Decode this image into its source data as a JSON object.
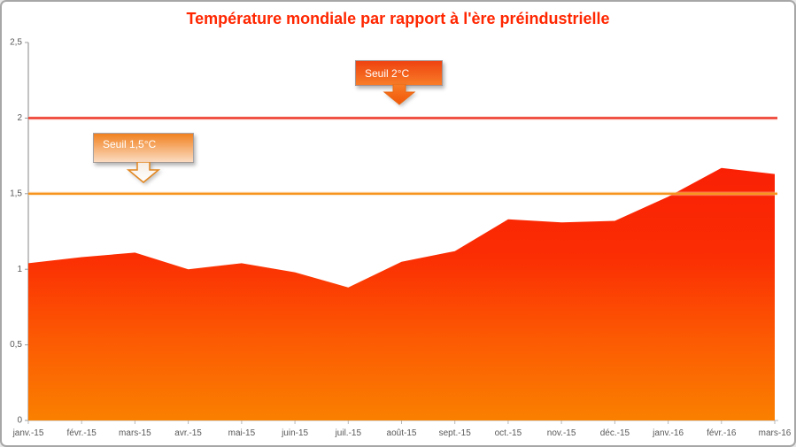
{
  "chart_data": {
    "type": "area",
    "title": "Température mondiale par rapport à l'ère préindustrielle",
    "title_color": "#ff2600",
    "categories": [
      "janv.-15",
      "févr.-15",
      "mars-15",
      "avr.-15",
      "mai-15",
      "juin-15",
      "juil.-15",
      "août-15",
      "sept.-15",
      "oct.-15",
      "nov.-15",
      "déc.-15",
      "janv.-16",
      "févr.-16",
      "mars-16"
    ],
    "values": [
      1.04,
      1.08,
      1.11,
      1.0,
      1.04,
      0.98,
      0.88,
      1.05,
      1.12,
      1.33,
      1.31,
      1.32,
      1.48,
      1.67,
      1.63
    ],
    "xlabel": "",
    "ylabel": "",
    "ylim": [
      0,
      2.5
    ],
    "yticks": [
      {
        "value": 0,
        "label": "0"
      },
      {
        "value": 0.5,
        "label": "0,5"
      },
      {
        "value": 1,
        "label": "1"
      },
      {
        "value": 1.5,
        "label": "1,5"
      },
      {
        "value": 2,
        "label": "2"
      },
      {
        "value": 2.5,
        "label": "2,5"
      }
    ],
    "grid": "off",
    "legend": "none",
    "axis_label_color": "#595959",
    "axis_line_color": "#9b9b9b",
    "tick_color": "#b8b8b8",
    "area_gradient": [
      "#fa2004",
      "#fb2d03",
      "#fc5a03",
      "#fa8000"
    ],
    "thresholds": [
      {
        "label": "Seuil 2°C",
        "value": 2,
        "line_color": "#ee3123",
        "halo_color": "#f9beb2"
      },
      {
        "label": "Seuil 1,5°C",
        "value": 1.5,
        "line_color": "#f7941e",
        "halo_color": "#fbd9a8"
      }
    ]
  }
}
